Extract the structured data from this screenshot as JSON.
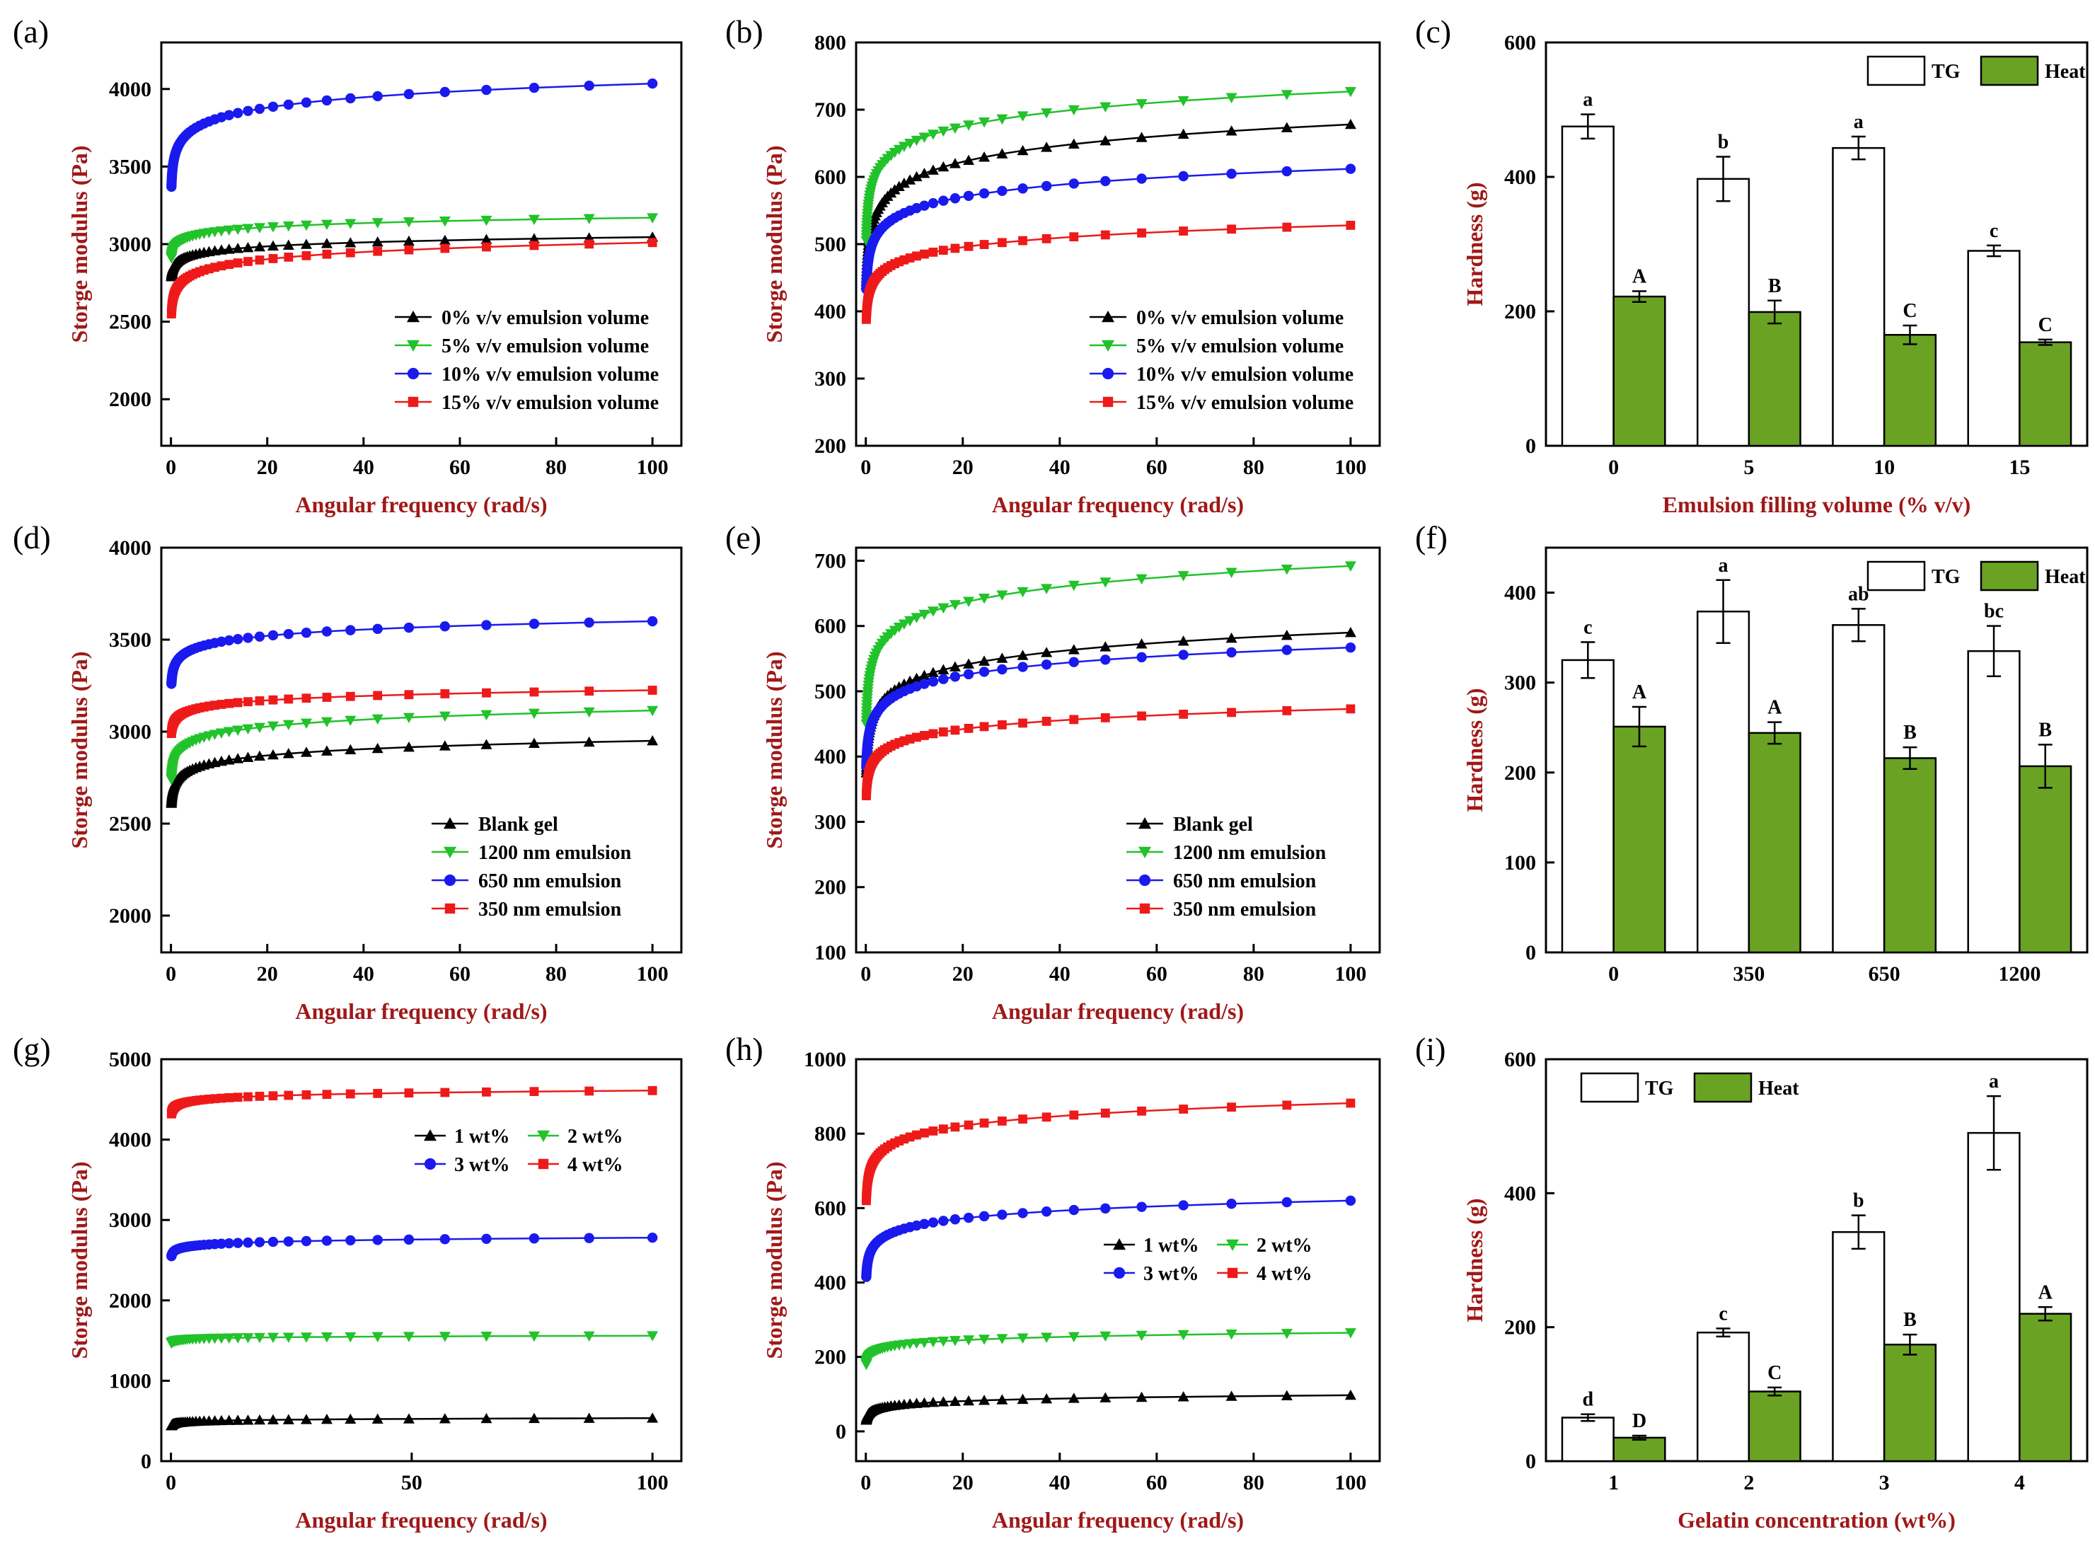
{
  "colors": {
    "black": "#000000",
    "green": "#22c22a",
    "blue": "#1a1aee",
    "red": "#ee1a1a",
    "bar_green": "#6aa324",
    "bar_white": "#ffffff",
    "axis_title": "#a01818"
  },
  "chart_data": [
    {
      "panel": "(a)",
      "type": "line",
      "xlabel": "Angular frequency (rad/s)",
      "ylabel": "Storge modulus (Pa)",
      "xlim": [
        -2,
        106
      ],
      "ylim": [
        1700,
        4300
      ],
      "xticks": [
        0,
        20,
        40,
        60,
        80,
        100
      ],
      "yticks": [
        2000,
        2500,
        3000,
        3500,
        4000
      ],
      "legend_position": "bottom-right",
      "series": [
        {
          "name": "0% v/v emulsion volume",
          "color": "#000000",
          "marker": "triangle-up",
          "start": 2790,
          "end": 3045,
          "shape": "log"
        },
        {
          "name": "5% v/v emulsion volume",
          "color": "#22c22a",
          "marker": "triangle-down",
          "start": 2910,
          "end": 3170,
          "shape": "log"
        },
        {
          "name": "10% v/v emulsion volume",
          "color": "#1a1aee",
          "marker": "circle",
          "start": 3370,
          "end": 4035,
          "shape": "log"
        },
        {
          "name": "15% v/v emulsion volume",
          "color": "#ee1a1a",
          "marker": "square",
          "start": 2550,
          "end": 3010,
          "shape": "log"
        }
      ]
    },
    {
      "panel": "(b)",
      "type": "line",
      "xlabel": "Angular frequency (rad/s)",
      "ylabel": "Storge modulus (Pa)",
      "xlim": [
        -2,
        106
      ],
      "ylim": [
        200,
        800
      ],
      "xticks": [
        0,
        20,
        40,
        60,
        80,
        100
      ],
      "yticks": [
        200,
        300,
        400,
        500,
        600,
        700,
        800
      ],
      "legend_position": "bottom-right",
      "series": [
        {
          "name": "0% v/v emulsion volume",
          "color": "#000000",
          "marker": "triangle-up",
          "start": 440,
          "end": 678,
          "shape": "log"
        },
        {
          "name": "5% v/v emulsion volume",
          "color": "#22c22a",
          "marker": "triangle-down",
          "start": 505,
          "end": 727,
          "shape": "log"
        },
        {
          "name": "10% v/v emulsion volume",
          "color": "#1a1aee",
          "marker": "circle",
          "start": 433,
          "end": 612,
          "shape": "log"
        },
        {
          "name": "15% v/v emulsion volume",
          "color": "#ee1a1a",
          "marker": "square",
          "start": 388,
          "end": 528,
          "shape": "log"
        }
      ]
    },
    {
      "panel": "(c)",
      "type": "bar",
      "xlabel": "Emulsion filling volume (% v/v)",
      "ylabel": "Hardness (g)",
      "ylim": [
        0,
        600
      ],
      "yticks": [
        0,
        200,
        400,
        600
      ],
      "categories": [
        "0",
        "5",
        "10",
        "15"
      ],
      "legend_position": "top-right",
      "series": [
        {
          "name": "TG",
          "color": "#ffffff",
          "values": [
            475,
            397,
            443,
            290
          ],
          "errors": [
            18,
            33,
            17,
            8
          ],
          "letters": [
            "a",
            "b",
            "a",
            "c"
          ]
        },
        {
          "name": "Heat",
          "color": "#6aa324",
          "values": [
            222,
            199,
            165,
            154
          ],
          "errors": [
            8,
            17,
            14,
            4
          ],
          "letters": [
            "A",
            "B",
            "C",
            "C"
          ]
        }
      ]
    },
    {
      "panel": "(d)",
      "type": "line",
      "xlabel": "Angular frequency (rad/s)",
      "ylabel": "Storge modulus (Pa)",
      "xlim": [
        -2,
        106
      ],
      "ylim": [
        1800,
        4000
      ],
      "xticks": [
        0,
        20,
        40,
        60,
        80,
        100
      ],
      "yticks": [
        2000,
        2500,
        3000,
        3500,
        4000
      ],
      "legend_position": "bottom-right",
      "series": [
        {
          "name": "Blank gel",
          "color": "#000000",
          "marker": "triangle-up",
          "start": 2610,
          "end": 2950,
          "shape": "log"
        },
        {
          "name": "1200 nm emulsion",
          "color": "#22c22a",
          "marker": "triangle-down",
          "start": 2740,
          "end": 3115,
          "shape": "log"
        },
        {
          "name": "650 nm emulsion",
          "color": "#1a1aee",
          "marker": "circle",
          "start": 3260,
          "end": 3600,
          "shape": "log"
        },
        {
          "name": "350 nm emulsion",
          "color": "#ee1a1a",
          "marker": "square",
          "start": 2990,
          "end": 3225,
          "shape": "log"
        }
      ]
    },
    {
      "panel": "(e)",
      "type": "line",
      "xlabel": "Angular frequency (rad/s)",
      "ylabel": "Storge modulus (Pa)",
      "xlim": [
        -2,
        106
      ],
      "ylim": [
        100,
        720
      ],
      "xticks": [
        0,
        20,
        40,
        60,
        80,
        100
      ],
      "yticks": [
        100,
        200,
        300,
        400,
        500,
        600,
        700
      ],
      "legend_position": "bottom-right",
      "series": [
        {
          "name": "Blank gel",
          "color": "#000000",
          "marker": "triangle-up",
          "start": 375,
          "end": 590,
          "shape": "log"
        },
        {
          "name": "1200 nm emulsion",
          "color": "#22c22a",
          "marker": "triangle-down",
          "start": 450,
          "end": 692,
          "shape": "log"
        },
        {
          "name": "650 nm emulsion",
          "color": "#1a1aee",
          "marker": "circle",
          "start": 385,
          "end": 567,
          "shape": "log"
        },
        {
          "name": "350 nm emulsion",
          "color": "#ee1a1a",
          "marker": "square",
          "start": 340,
          "end": 473,
          "shape": "log"
        }
      ]
    },
    {
      "panel": "(f)",
      "type": "bar",
      "xlabel": "",
      "ylabel": "Hardness (g)",
      "ylim": [
        0,
        450
      ],
      "yticks": [
        0,
        100,
        200,
        300,
        400
      ],
      "categories": [
        "0",
        "350",
        "650",
        "1200"
      ],
      "legend_position": "top-right",
      "series": [
        {
          "name": "TG",
          "color": "#ffffff",
          "values": [
            325,
            379,
            364,
            335
          ],
          "errors": [
            20,
            35,
            18,
            28
          ],
          "letters": [
            "c",
            "a",
            "ab",
            "bc"
          ]
        },
        {
          "name": "Heat",
          "color": "#6aa324",
          "values": [
            251,
            244,
            216,
            207
          ],
          "errors": [
            22,
            12,
            12,
            24
          ],
          "letters": [
            "A",
            "A",
            "B",
            "B"
          ]
        }
      ]
    },
    {
      "panel": "(g)",
      "type": "line",
      "xlabel": "Angular frequency (rad/s)",
      "ylabel": "Storge modulus (Pa)",
      "xlim": [
        -2,
        106
      ],
      "ylim": [
        0,
        5000
      ],
      "xticks": [
        0,
        50,
        100
      ],
      "yticks": [
        0,
        1000,
        2000,
        3000,
        4000,
        5000
      ],
      "legend_position": "top-right",
      "series": [
        {
          "name": "1 wt%",
          "color": "#000000",
          "marker": "triangle-up",
          "start": 440,
          "end": 535,
          "shape": "log"
        },
        {
          "name": "2 wt%",
          "color": "#22c22a",
          "marker": "triangle-down",
          "start": 1470,
          "end": 1560,
          "shape": "log"
        },
        {
          "name": "3 wt%",
          "color": "#1a1aee",
          "marker": "circle",
          "start": 2550,
          "end": 2780,
          "shape": "log"
        },
        {
          "name": "4 wt%",
          "color": "#ee1a1a",
          "marker": "square",
          "start": 4320,
          "end": 4610,
          "shape": "log"
        }
      ]
    },
    {
      "panel": "(h)",
      "type": "line",
      "xlabel": "Angular frequency (rad/s)",
      "ylabel": "Storge modulus (Pa)",
      "xlim": [
        -2,
        106
      ],
      "ylim": [
        -80,
        1000
      ],
      "xticks": [
        0,
        20,
        40,
        60,
        80,
        100
      ],
      "yticks": [
        0,
        200,
        400,
        600,
        800,
        1000
      ],
      "legend_position": "center-right",
      "series": [
        {
          "name": "1 wt%",
          "color": "#000000",
          "marker": "triangle-up",
          "start": 30,
          "end": 97,
          "shape": "log"
        },
        {
          "name": "2 wt%",
          "color": "#22c22a",
          "marker": "triangle-down",
          "start": 180,
          "end": 265,
          "shape": "log"
        },
        {
          "name": "3 wt%",
          "color": "#1a1aee",
          "marker": "circle",
          "start": 415,
          "end": 620,
          "shape": "log"
        },
        {
          "name": "4 wt%",
          "color": "#ee1a1a",
          "marker": "square",
          "start": 620,
          "end": 882,
          "shape": "log"
        }
      ]
    },
    {
      "panel": "(i)",
      "type": "bar",
      "xlabel": "Gelatin concentration (wt%)",
      "ylabel": "Hardness (g)",
      "ylim": [
        0,
        600
      ],
      "yticks": [
        0,
        200,
        400,
        600
      ],
      "categories": [
        "1",
        "2",
        "3",
        "4"
      ],
      "legend_position": "top-left",
      "series": [
        {
          "name": "TG",
          "color": "#ffffff",
          "values": [
            65,
            192,
            342,
            490
          ],
          "errors": [
            5,
            6,
            25,
            55
          ],
          "letters": [
            "d",
            "c",
            "b",
            "a"
          ]
        },
        {
          "name": "Heat",
          "color": "#6aa324",
          "values": [
            35,
            104,
            174,
            220
          ],
          "errors": [
            3,
            6,
            15,
            10
          ],
          "letters": [
            "D",
            "C",
            "B",
            "A"
          ]
        }
      ]
    }
  ]
}
